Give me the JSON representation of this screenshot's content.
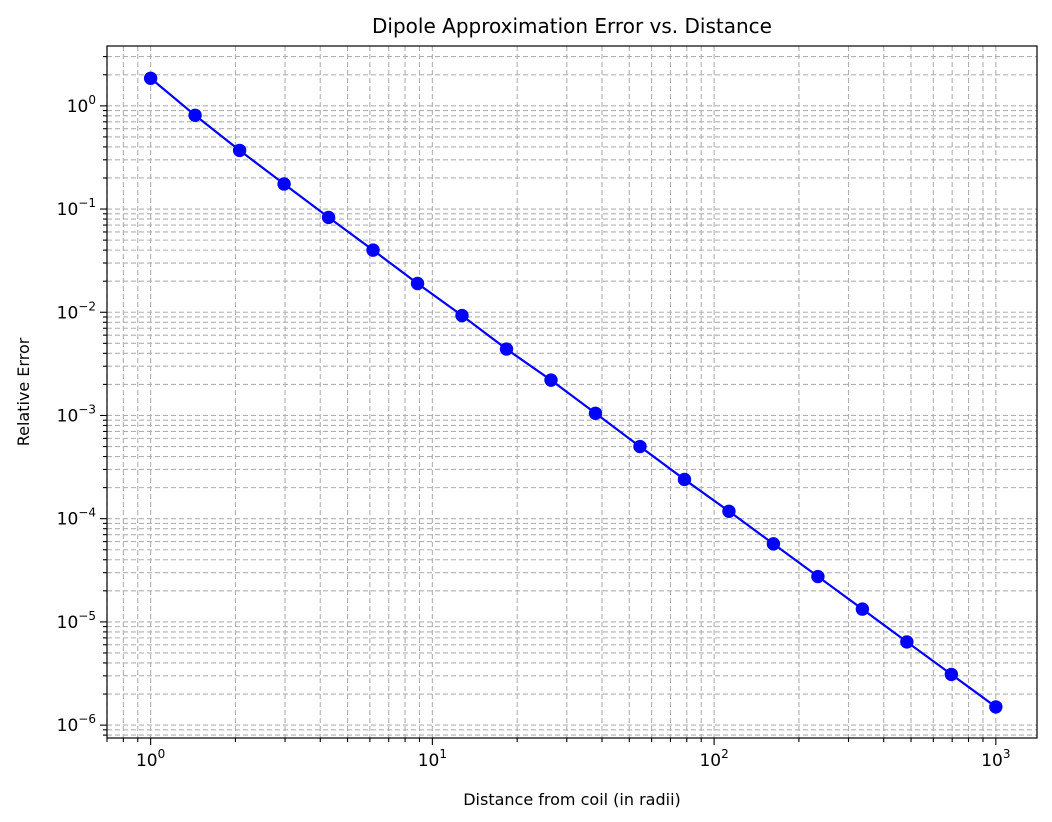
{
  "chart_data": {
    "type": "line",
    "title": "Dipole Approximation Error vs. Distance",
    "xlabel": "Distance from coil (in radii)",
    "ylabel": "Relative Error",
    "xscale": "log",
    "yscale": "log",
    "xlim": [
      0.7,
      1400
    ],
    "ylim": [
      7.5e-07,
      3.8
    ],
    "grid": true,
    "grid_style": "dashed, major and minor",
    "x_ticks": [
      {
        "value": 1,
        "base": "10",
        "exp": "0"
      },
      {
        "value": 10,
        "base": "10",
        "exp": "1"
      },
      {
        "value": 100,
        "base": "10",
        "exp": "2"
      },
      {
        "value": 1000,
        "base": "10",
        "exp": "3"
      }
    ],
    "y_ticks": [
      {
        "value": 1e-06,
        "base": "10",
        "exp": "−6"
      },
      {
        "value": 1e-05,
        "base": "10",
        "exp": "−5"
      },
      {
        "value": 0.0001,
        "base": "10",
        "exp": "−4"
      },
      {
        "value": 0.001,
        "base": "10",
        "exp": "−3"
      },
      {
        "value": 0.01,
        "base": "10",
        "exp": "−2"
      },
      {
        "value": 0.1,
        "base": "10",
        "exp": "−1"
      },
      {
        "value": 1,
        "base": "10",
        "exp": "0"
      }
    ],
    "series": [
      {
        "color": "#0000ff",
        "marker": "circle",
        "x": [
          1,
          1.438,
          2.069,
          2.976,
          4.281,
          6.158,
          8.859,
          12.74,
          18.33,
          26.37,
          37.93,
          54.56,
          78.48,
          112.9,
          162.4,
          233.6,
          336.0,
          483.3,
          695.2,
          1000
        ],
        "y": [
          1.85,
          0.81,
          0.37,
          0.175,
          0.083,
          0.04,
          0.019,
          0.0093,
          0.0044,
          0.0022,
          0.00105,
          0.0005,
          0.00024,
          0.000118,
          5.7e-05,
          2.75e-05,
          1.33e-05,
          6.4e-06,
          3.1e-06,
          1.5e-06
        ]
      }
    ]
  }
}
